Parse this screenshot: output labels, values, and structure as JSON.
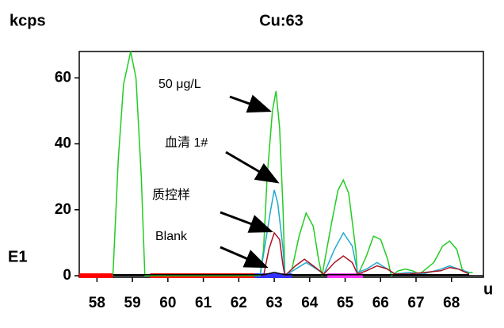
{
  "chart_data": {
    "type": "line",
    "title": "Cu:63",
    "y_label": "kcps",
    "x_label": "u",
    "detector_label": "E1",
    "xlim": [
      57.5,
      68.9
    ],
    "ylim": [
      0,
      68
    ],
    "xticks": [
      58,
      59,
      60,
      61,
      62,
      63,
      64,
      65,
      66,
      67,
      68
    ],
    "yticks": [
      0,
      20,
      40,
      60
    ],
    "annotations": [
      "50 μg/L",
      "血清 1#",
      "质控样",
      "Blank"
    ],
    "regions": [
      {
        "start": 57.5,
        "end": 58.45,
        "color": "#ff0000"
      },
      {
        "start": 59.5,
        "end": 62.45,
        "color": "#ff0000"
      },
      {
        "start": 62.45,
        "end": 63.5,
        "color": "#3333ff"
      },
      {
        "start": 64.5,
        "end": 65.5,
        "color": "#ff33ff"
      }
    ],
    "series": [
      {
        "color": "#22cc22",
        "x": [
          58.45,
          58.6,
          58.75,
          58.95,
          59.1,
          59.25,
          59.35,
          62.6,
          62.7,
          62.8,
          62.95,
          63.05,
          63.15,
          63.25,
          63.3,
          63.5,
          63.7,
          63.9,
          64.1,
          64.25,
          64.35,
          64.6,
          64.8,
          64.95,
          65.1,
          65.3,
          65.35,
          65.6,
          65.8,
          66.0,
          66.2,
          66.3,
          66.5,
          66.7,
          66.9,
          67.1,
          67.5,
          67.75,
          67.95,
          68.15,
          68.3,
          68.4,
          68.6
        ],
        "values": [
          0,
          35,
          58,
          68,
          60,
          30,
          0,
          0,
          8,
          30,
          50,
          56,
          45,
          20,
          0,
          2,
          12,
          19,
          15,
          5,
          0,
          15,
          26,
          29,
          25,
          8,
          0,
          6,
          12,
          11,
          5,
          0,
          1.5,
          2,
          1.5,
          0.5,
          4,
          9,
          10.5,
          8,
          2,
          1,
          1
        ]
      },
      {
        "color": "#22aacc",
        "x": [
          62.6,
          62.75,
          62.9,
          63.0,
          63.1,
          63.25,
          63.3,
          63.6,
          63.9,
          64.2,
          64.4,
          64.7,
          64.95,
          65.2,
          65.35,
          65.6,
          65.9,
          66.2,
          66.4,
          66.8,
          67.2,
          67.7,
          67.95,
          68.2,
          68.5
        ],
        "values": [
          0,
          10,
          20,
          26,
          22,
          8,
          0,
          2,
          4,
          2,
          0.5,
          8,
          13,
          9,
          1,
          2,
          4,
          2,
          0.5,
          1,
          0.5,
          2,
          3,
          2,
          1
        ]
      },
      {
        "color": "#aa1122",
        "x": [
          62.7,
          62.85,
          63.0,
          63.15,
          63.25,
          63.3,
          63.6,
          63.85,
          64.1,
          64.4,
          64.7,
          64.95,
          65.2,
          65.35,
          65.6,
          65.9,
          66.2,
          66.4,
          66.8,
          67.7,
          67.95,
          68.2,
          68.5
        ],
        "values": [
          0,
          8,
          13,
          11,
          3,
          0,
          3,
          5,
          3,
          0.5,
          4,
          6,
          4,
          0.5,
          1.5,
          3,
          2,
          0.5,
          0.5,
          1.5,
          2.5,
          2,
          0.5
        ]
      },
      {
        "color": "#000000",
        "x": [
          58.45,
          62.7,
          63.0,
          63.3,
          68.5
        ],
        "values": [
          0.3,
          0.3,
          1,
          0.3,
          0.3
        ]
      }
    ]
  }
}
